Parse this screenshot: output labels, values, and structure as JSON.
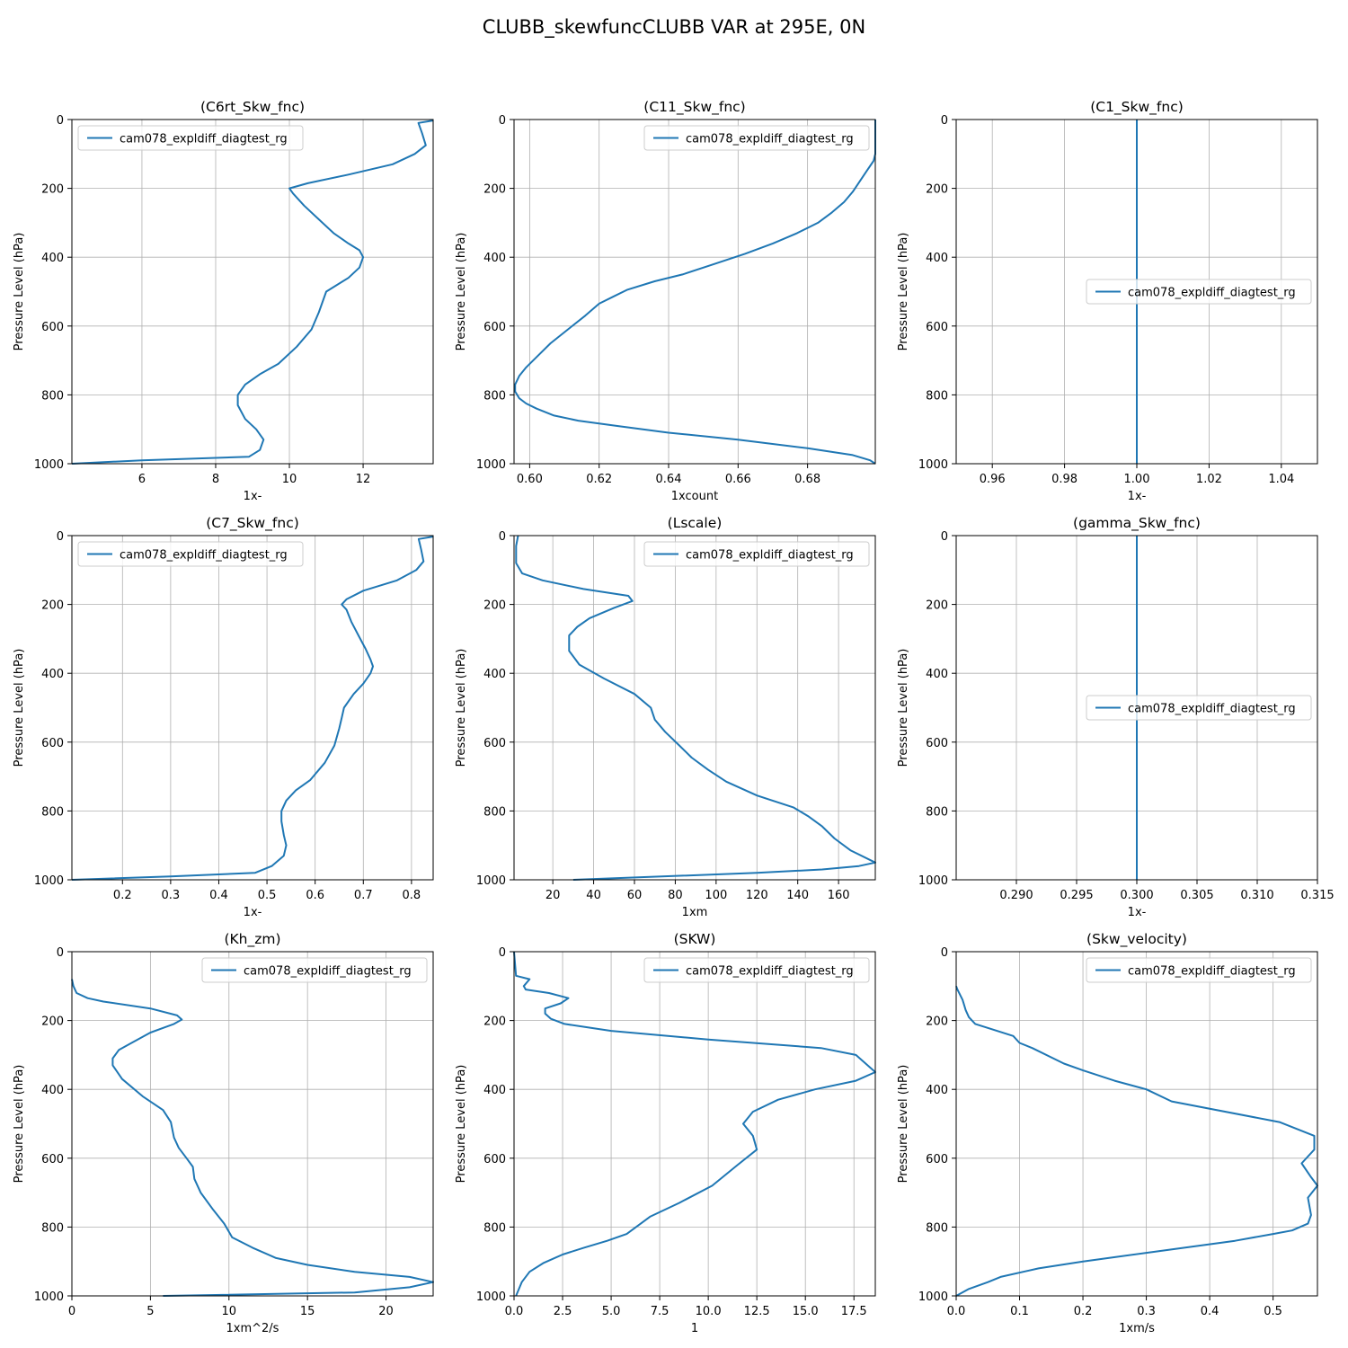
{
  "figure": {
    "title": "CLUBB_skewfuncCLUBB VAR at 295E, 0N"
  },
  "colors": {
    "series": "#1f77b4",
    "grid": "#b0b0b0"
  },
  "chart_data": [
    {
      "type": "line",
      "title": "(C6rt_Skw_fnc)",
      "xlabel": "1x-",
      "ylabel": "Pressure Level (hPa)",
      "xlim": [
        4.1,
        13.9
      ],
      "ylim": [
        1000,
        0
      ],
      "xticks": [
        6,
        8,
        10,
        12
      ],
      "xticklabels": [
        "6",
        "8",
        "10",
        "12"
      ],
      "yticks": [
        0,
        200,
        400,
        600,
        800,
        1000
      ],
      "legend": "upper left",
      "series": [
        {
          "name": "cam078_expldiff_diagtest_rg",
          "x": [
            13.9,
            13.5,
            13.6,
            13.7,
            13.4,
            12.8,
            11.6,
            10.5,
            10.0,
            10.1,
            10.4,
            10.8,
            11.2,
            11.6,
            11.9,
            12.0,
            11.9,
            11.6,
            11.0,
            10.9,
            10.8,
            10.6,
            10.2,
            9.7,
            9.2,
            8.8,
            8.6,
            8.6,
            8.8,
            9.1,
            9.3,
            9.2,
            8.9,
            6.0,
            4.1
          ],
          "y": [
            3,
            10,
            40,
            75,
            100,
            130,
            160,
            185,
            200,
            215,
            250,
            290,
            330,
            360,
            380,
            400,
            430,
            460,
            500,
            530,
            560,
            610,
            660,
            710,
            740,
            770,
            800,
            830,
            870,
            900,
            930,
            960,
            980,
            990,
            1000
          ]
        }
      ]
    },
    {
      "type": "line",
      "title": "(C11_Skw_fnc)",
      "xlabel": "1xcount",
      "ylabel": "Pressure Level (hPa)",
      "xlim": [
        0.5955,
        0.6995
      ],
      "ylim": [
        1000,
        0
      ],
      "xticks": [
        0.6,
        0.62,
        0.64,
        0.66,
        0.68
      ],
      "xticklabels": [
        "0.60",
        "0.62",
        "0.64",
        "0.66",
        "0.68"
      ],
      "yticks": [
        0,
        200,
        400,
        600,
        800,
        1000
      ],
      "legend": "upper right",
      "series": [
        {
          "name": "cam078_expldiff_diagtest_rg",
          "x": [
            0.6995,
            0.6995,
            0.6995,
            0.699,
            0.697,
            0.695,
            0.693,
            0.6905,
            0.687,
            0.683,
            0.677,
            0.67,
            0.662,
            0.653,
            0.644,
            0.636,
            0.628,
            0.624,
            0.62,
            0.616,
            0.611,
            0.606,
            0.602,
            0.599,
            0.597,
            0.5958,
            0.5958,
            0.597,
            0.599,
            0.602,
            0.607,
            0.614,
            0.625,
            0.64,
            0.66,
            0.68,
            0.693,
            0.698,
            0.6995
          ],
          "y": [
            0,
            50,
            100,
            120,
            150,
            180,
            210,
            240,
            270,
            300,
            330,
            360,
            390,
            420,
            450,
            470,
            495,
            515,
            535,
            570,
            610,
            650,
            690,
            720,
            745,
            770,
            790,
            810,
            825,
            840,
            860,
            875,
            890,
            910,
            930,
            955,
            975,
            990,
            1000
          ]
        }
      ]
    },
    {
      "type": "line",
      "title": "(C1_Skw_fnc)",
      "xlabel": "1x-",
      "ylabel": "Pressure Level (hPa)",
      "xlim": [
        0.95,
        1.05
      ],
      "ylim": [
        1000,
        0
      ],
      "xticks": [
        0.96,
        0.98,
        1.0,
        1.02,
        1.04
      ],
      "xticklabels": [
        "0.96",
        "0.98",
        "1.00",
        "1.02",
        "1.04"
      ],
      "yticks": [
        0,
        200,
        400,
        600,
        800,
        1000
      ],
      "legend": "center right",
      "series": [
        {
          "name": "cam078_expldiff_diagtest_rg",
          "x": [
            1.0,
            1.0
          ],
          "y": [
            0,
            1000
          ]
        }
      ]
    },
    {
      "type": "line",
      "title": "(C7_Skw_fnc)",
      "xlabel": "1x-",
      "ylabel": "Pressure Level (hPa)",
      "xlim": [
        0.095,
        0.845
      ],
      "ylim": [
        1000,
        0
      ],
      "xticks": [
        0.2,
        0.3,
        0.4,
        0.5,
        0.6,
        0.7,
        0.8
      ],
      "xticklabels": [
        "0.2",
        "0.3",
        "0.4",
        "0.5",
        "0.6",
        "0.7",
        "0.8"
      ],
      "yticks": [
        0,
        200,
        400,
        600,
        800,
        1000
      ],
      "legend": "upper left",
      "series": [
        {
          "name": "cam078_expldiff_diagtest_rg",
          "x": [
            0.845,
            0.815,
            0.82,
            0.825,
            0.81,
            0.77,
            0.7,
            0.665,
            0.655,
            0.665,
            0.675,
            0.69,
            0.705,
            0.715,
            0.72,
            0.715,
            0.7,
            0.68,
            0.66,
            0.655,
            0.65,
            0.64,
            0.62,
            0.59,
            0.56,
            0.54,
            0.53,
            0.53,
            0.535,
            0.54,
            0.535,
            0.51,
            0.475,
            0.3,
            0.095
          ],
          "y": [
            3,
            10,
            40,
            75,
            100,
            130,
            160,
            185,
            200,
            215,
            250,
            290,
            330,
            360,
            380,
            400,
            430,
            460,
            500,
            530,
            560,
            610,
            660,
            710,
            740,
            770,
            800,
            830,
            870,
            900,
            930,
            960,
            980,
            990,
            1000
          ]
        }
      ]
    },
    {
      "type": "line",
      "title": "(Lscale)",
      "xlabel": "1xm",
      "ylabel": "Pressure Level (hPa)",
      "xlim": [
        1,
        178
      ],
      "ylim": [
        1000,
        0
      ],
      "xticks": [
        20,
        40,
        60,
        80,
        100,
        120,
        140,
        160
      ],
      "xticklabels": [
        "20",
        "40",
        "60",
        "80",
        "100",
        "120",
        "140",
        "160"
      ],
      "yticks": [
        0,
        200,
        400,
        600,
        800,
        1000
      ],
      "legend": "upper right",
      "series": [
        {
          "name": "cam078_expldiff_diagtest_rg",
          "x": [
            3,
            2,
            2,
            5,
            15,
            35,
            57,
            59,
            50,
            38,
            32,
            28,
            28,
            33,
            45,
            60,
            68,
            70,
            75,
            82,
            88,
            96,
            105,
            120,
            138,
            145,
            152,
            158,
            166,
            178,
            170,
            152,
            120,
            30
          ],
          "y": [
            0,
            30,
            80,
            110,
            130,
            155,
            175,
            190,
            210,
            240,
            265,
            290,
            335,
            375,
            415,
            460,
            500,
            535,
            570,
            610,
            645,
            680,
            715,
            755,
            790,
            815,
            845,
            880,
            915,
            950,
            960,
            970,
            980,
            1000
          ]
        }
      ]
    },
    {
      "type": "line",
      "title": "(gamma_Skw_fnc)",
      "xlabel": "1x-",
      "ylabel": "Pressure Level (hPa)",
      "xlim": [
        0.285,
        0.315
      ],
      "ylim": [
        1000,
        0
      ],
      "xticks": [
        0.29,
        0.295,
        0.3,
        0.305,
        0.31,
        0.315
      ],
      "xticklabels": [
        "0.290",
        "0.295",
        "0.300",
        "0.305",
        "0.310",
        "0.315"
      ],
      "yticks": [
        0,
        200,
        400,
        600,
        800,
        1000
      ],
      "legend": "center right",
      "series": [
        {
          "name": "cam078_expldiff_diagtest_rg",
          "x": [
            0.3,
            0.3
          ],
          "y": [
            0,
            1000
          ]
        }
      ]
    },
    {
      "type": "line",
      "title": "(Kh_zm)",
      "xlabel": "1xm^2/s",
      "ylabel": "Pressure Level (hPa)",
      "xlim": [
        0,
        23
      ],
      "ylim": [
        1000,
        0
      ],
      "xticks": [
        0,
        5,
        10,
        15,
        20
      ],
      "xticklabels": [
        "0",
        "5",
        "10",
        "15",
        "20"
      ],
      "yticks": [
        0,
        200,
        400,
        600,
        800,
        1000
      ],
      "legend": "upper right",
      "series": [
        {
          "name": "cam078_expldiff_diagtest_rg",
          "x": [
            0,
            0.1,
            0.3,
            1,
            2,
            5,
            6.7,
            7.0,
            6.5,
            5,
            3.8,
            3,
            2.6,
            2.6,
            3.2,
            4.5,
            5.8,
            6.3,
            6.5,
            6.8,
            7.3,
            7.7,
            7.8,
            8.2,
            9,
            9.7,
            10.2,
            11.5,
            13,
            15,
            18,
            21.5,
            23,
            21.5,
            18,
            5.8
          ],
          "y": [
            80,
            100,
            120,
            135,
            145,
            165,
            185,
            197,
            210,
            235,
            265,
            285,
            310,
            330,
            370,
            420,
            460,
            495,
            540,
            570,
            600,
            625,
            660,
            700,
            750,
            790,
            830,
            860,
            890,
            910,
            930,
            945,
            960,
            975,
            990,
            1000
          ]
        }
      ]
    },
    {
      "type": "line",
      "title": "(SKW)",
      "xlabel": "1",
      "ylabel": "Pressure Level (hPa)",
      "xlim": [
        0,
        18.6
      ],
      "ylim": [
        1000,
        0
      ],
      "xticks": [
        0,
        2.5,
        5,
        7.5,
        10,
        12.5,
        15,
        17.5
      ],
      "xticklabels": [
        "0.0",
        "2.5",
        "5.0",
        "7.5",
        "10.0",
        "12.5",
        "15.0",
        "17.5"
      ],
      "yticks": [
        0,
        200,
        400,
        600,
        800,
        1000
      ],
      "legend": "upper right",
      "series": [
        {
          "name": "cam078_expldiff_diagtest_rg",
          "x": [
            0,
            0.1,
            0.8,
            0.5,
            0.6,
            1.8,
            2.8,
            2.4,
            1.6,
            1.6,
            1.9,
            2.6,
            5,
            10,
            15.8,
            17.6,
            18.6,
            17.6,
            15.5,
            13.6,
            12.3,
            11.8,
            12.3,
            12.5,
            11.5,
            10.2,
            8.5,
            7,
            5.8,
            4.8,
            3.6,
            2.5,
            1.5,
            0.8,
            0.4,
            0.1
          ],
          "y": [
            0,
            70,
            80,
            100,
            110,
            120,
            135,
            150,
            165,
            180,
            195,
            210,
            230,
            255,
            280,
            300,
            350,
            375,
            400,
            430,
            465,
            500,
            535,
            575,
            620,
            680,
            730,
            770,
            820,
            840,
            860,
            880,
            905,
            930,
            960,
            1000
          ]
        }
      ]
    },
    {
      "type": "line",
      "title": "(Skw_velocity)",
      "xlabel": "1xm/s",
      "ylabel": "Pressure Level (hPa)",
      "xlim": [
        0,
        0.57
      ],
      "ylim": [
        1000,
        0
      ],
      "xticks": [
        0,
        0.1,
        0.2,
        0.3,
        0.4,
        0.5
      ],
      "xticklabels": [
        "0.0",
        "0.1",
        "0.2",
        "0.3",
        "0.4",
        "0.5"
      ],
      "yticks": [
        0,
        200,
        400,
        600,
        800,
        1000
      ],
      "legend": "upper right",
      "series": [
        {
          "name": "cam078_expldiff_diagtest_rg",
          "x": [
            0,
            0.002,
            0.01,
            0.015,
            0.02,
            0.03,
            0.09,
            0.1,
            0.12,
            0.17,
            0.2,
            0.25,
            0.3,
            0.34,
            0.51,
            0.565,
            0.565,
            0.545,
            0.56,
            0.57,
            0.555,
            0.56,
            0.555,
            0.53,
            0.5,
            0.44,
            0.3,
            0.2,
            0.13,
            0.07,
            0.05,
            0.02,
            0
          ],
          "y": [
            100,
            110,
            140,
            170,
            190,
            210,
            245,
            265,
            280,
            325,
            345,
            375,
            400,
            435,
            495,
            535,
            575,
            615,
            655,
            680,
            715,
            765,
            790,
            810,
            820,
            840,
            875,
            900,
            920,
            945,
            960,
            980,
            1000
          ]
        }
      ]
    }
  ]
}
